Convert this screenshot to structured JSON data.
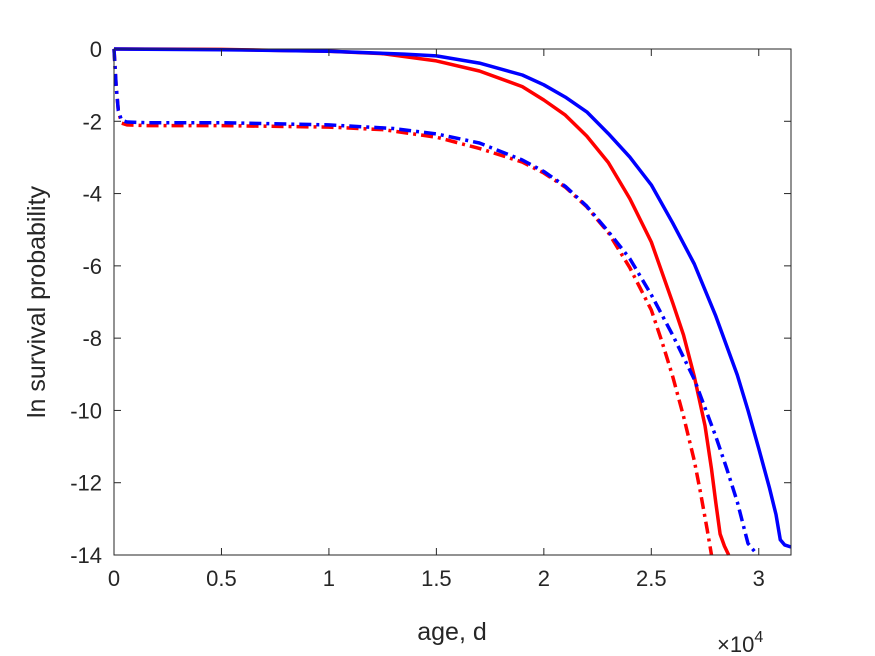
{
  "chart_data": {
    "type": "line",
    "xlabel": "age, d",
    "ylabel": "ln survival probability",
    "x_multiplier": {
      "base": "×10",
      "exponent": "4"
    },
    "xlim": [
      0,
      31500
    ],
    "ylim": [
      -14,
      0
    ],
    "xticks": [
      0,
      5000,
      10000,
      15000,
      20000,
      25000,
      30000
    ],
    "xtick_labels": [
      "0",
      "0.5",
      "1",
      "1.5",
      "2",
      "2.5",
      "3"
    ],
    "yticks": [
      0,
      -2,
      -4,
      -6,
      -8,
      -10,
      -12,
      -14
    ],
    "ytick_labels": [
      "0",
      "-2",
      "-4",
      "-6",
      "-8",
      "-10",
      "-12",
      "-14"
    ],
    "grid": false,
    "series": [
      {
        "color": "#ff0000",
        "style": "solid",
        "x": [
          0,
          5000,
          10000,
          12500,
          15000,
          17000,
          19000,
          20000,
          21000,
          22000,
          23000,
          24000,
          25000,
          26000,
          26500,
          27000,
          27500,
          27800,
          28000,
          28200,
          28400,
          28600
        ],
        "y": [
          0,
          -0.01,
          -0.06,
          -0.13,
          -0.33,
          -0.61,
          -1.04,
          -1.41,
          -1.83,
          -2.41,
          -3.14,
          -4.14,
          -5.34,
          -7.03,
          -7.91,
          -9.06,
          -10.42,
          -11.62,
          -12.55,
          -13.42,
          -13.75,
          -14.0
        ]
      },
      {
        "color": "#0000ff",
        "style": "solid",
        "x": [
          0,
          5000,
          10000,
          13500,
          15000,
          17000,
          19000,
          20000,
          21000,
          22000,
          23000,
          24000,
          25000,
          26000,
          27000,
          28000,
          29000,
          29500,
          30000,
          30500,
          30800,
          31000,
          31200,
          31500
        ],
        "y": [
          0,
          -0.02,
          -0.06,
          -0.14,
          -0.19,
          -0.39,
          -0.72,
          -0.99,
          -1.33,
          -1.74,
          -2.34,
          -2.99,
          -3.76,
          -4.82,
          -5.95,
          -7.39,
          -9.02,
          -10.0,
          -11.06,
          -12.15,
          -12.88,
          -13.58,
          -13.72,
          -13.78
        ]
      },
      {
        "color": "#ff0000",
        "style": "dashdot",
        "x": [
          0,
          100,
          200,
          350,
          600,
          1500,
          5000,
          10000,
          12500,
          15000,
          17000,
          19000,
          20000,
          21000,
          22000,
          23000,
          24000,
          25000,
          25500,
          26000,
          26500,
          27000,
          27300,
          27600,
          27800
        ],
        "y": [
          0,
          -1.0,
          -1.7,
          -2.05,
          -2.1,
          -2.12,
          -2.12,
          -2.16,
          -2.23,
          -2.44,
          -2.75,
          -3.13,
          -3.43,
          -3.82,
          -4.37,
          -5.08,
          -6.05,
          -7.22,
          -8.1,
          -9.07,
          -10.16,
          -11.39,
          -12.3,
          -13.3,
          -14.0
        ]
      },
      {
        "color": "#0000ff",
        "style": "dashdot",
        "x": [
          0,
          100,
          200,
          350,
          600,
          1500,
          5000,
          10000,
          13000,
          15000,
          17000,
          19000,
          20000,
          21000,
          22000,
          23000,
          24000,
          25000,
          26000,
          27000,
          28000,
          28500,
          29000,
          29300,
          29500,
          29800
        ],
        "y": [
          0,
          -1.0,
          -1.7,
          -1.97,
          -2.02,
          -2.04,
          -2.04,
          -2.1,
          -2.2,
          -2.35,
          -2.6,
          -3.07,
          -3.39,
          -3.8,
          -4.35,
          -5.05,
          -5.8,
          -6.8,
          -7.92,
          -9.14,
          -10.72,
          -11.59,
          -12.53,
          -13.22,
          -13.68,
          -13.9
        ]
      }
    ]
  }
}
